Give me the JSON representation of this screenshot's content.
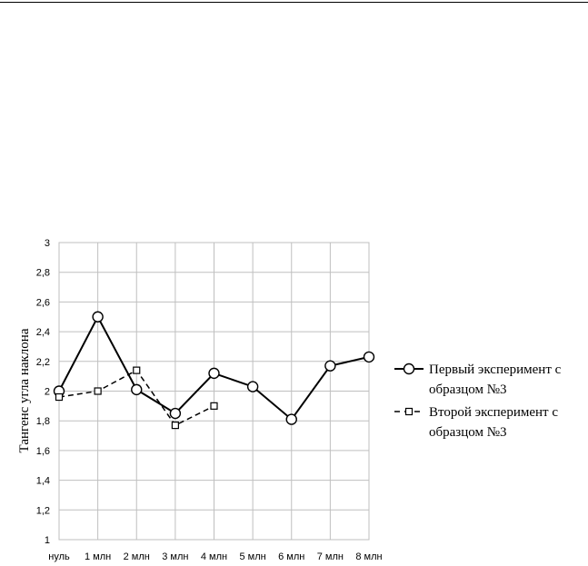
{
  "chart_data": {
    "type": "line",
    "title": "",
    "xlabel": "",
    "ylabel": "Тангенс угла наклона",
    "categories": [
      "нуль",
      "1 млн",
      "2 млн",
      "3 млн",
      "4 млн",
      "5 млн",
      "6 млн",
      "7 млн",
      "8 млн"
    ],
    "y_ticks": [
      "1",
      "1,2",
      "1,4",
      "1,6",
      "1,8",
      "2",
      "2,2",
      "2,4",
      "2,6",
      "2,8",
      "3"
    ],
    "ylim": [
      1,
      3
    ],
    "grid": true,
    "legend_position": "right",
    "series": [
      {
        "name_lines": [
          "Первый эксперимент с",
          "образцом №3"
        ],
        "marker": "circle",
        "line_style": "solid",
        "values": [
          2.0,
          2.5,
          2.01,
          1.85,
          2.12,
          2.03,
          1.81,
          2.17,
          2.23
        ]
      },
      {
        "name_lines": [
          "Второй эксперимент с",
          "образцом №3"
        ],
        "marker": "square",
        "line_style": "dashed",
        "values": [
          1.96,
          2.0,
          2.14,
          1.77,
          1.9,
          null,
          null,
          null,
          null
        ]
      }
    ]
  }
}
